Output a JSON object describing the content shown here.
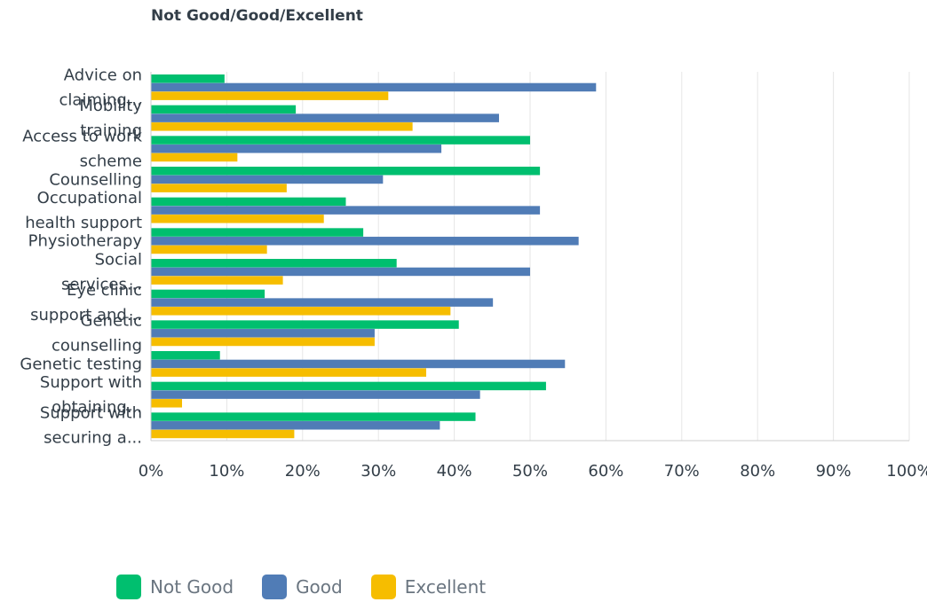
{
  "chart_data": {
    "type": "bar",
    "orientation": "horizontal",
    "title": "Not Good/Good/Excellent",
    "categories": [
      [
        "Advice on",
        "claiming..."
      ],
      [
        "Mobility",
        "training"
      ],
      [
        "Access to work",
        "scheme"
      ],
      [
        "Counselling"
      ],
      [
        "Occupational",
        "health support"
      ],
      [
        "Physiotherapy"
      ],
      [
        "Social",
        "services..."
      ],
      [
        "Eye clinic",
        "support and..."
      ],
      [
        "Genetic",
        "counselling"
      ],
      [
        "Genetic testing"
      ],
      [
        "Support with",
        "obtaining..."
      ],
      [
        "Support with",
        "securing a..."
      ]
    ],
    "series": [
      {
        "name": "Not Good",
        "color": "#00bf6f",
        "values": [
          9.7,
          19.1,
          50.0,
          51.3,
          25.7,
          28.0,
          32.4,
          15.0,
          40.6,
          9.1,
          52.1,
          42.8
        ]
      },
      {
        "name": "Good",
        "color": "#507cb6",
        "values": [
          58.7,
          45.9,
          38.3,
          30.6,
          51.3,
          56.4,
          50.0,
          45.1,
          29.5,
          54.6,
          43.4,
          38.1
        ]
      },
      {
        "name": "Excellent",
        "color": "#f6bd00",
        "values": [
          31.3,
          34.5,
          11.4,
          17.9,
          22.8,
          15.3,
          17.4,
          39.5,
          29.5,
          36.3,
          4.1,
          18.9
        ]
      }
    ],
    "xlim": [
      0,
      100
    ],
    "xticks": [
      "0%",
      "10%",
      "20%",
      "30%",
      "40%",
      "50%",
      "60%",
      "70%",
      "80%",
      "90%",
      "100%"
    ],
    "grid": true,
    "legend_position": "bottom"
  },
  "legend": {
    "items": [
      {
        "label": "Not Good",
        "color": "#00bf6f"
      },
      {
        "label": "Good",
        "color": "#507cb6"
      },
      {
        "label": "Excellent",
        "color": "#f6bd00"
      }
    ]
  }
}
